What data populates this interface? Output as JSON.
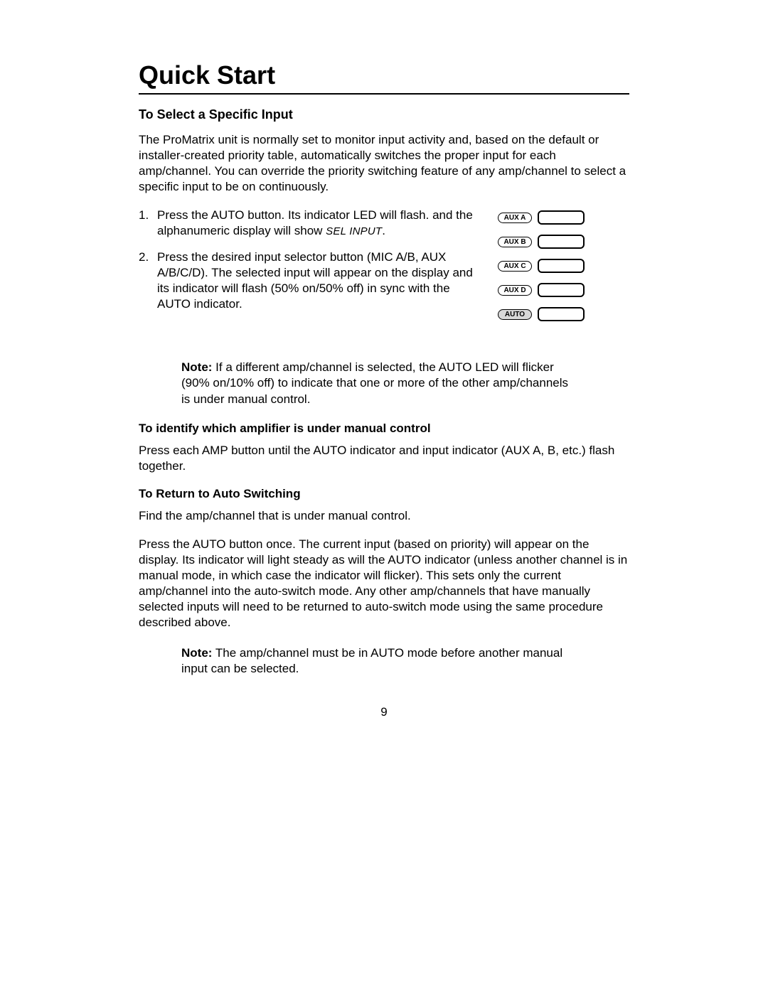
{
  "title": "Quick Start",
  "subtitle": "To Select a Specific Input",
  "intro": "The ProMatrix unit is normally set to monitor input activity and, based on the default or installer-created priority table, automatically switches the proper input for each amp/channel.  You can override the priority switching feature of any amp/channel to select a specific input to be on continuously.",
  "step1_num": "1.",
  "step1_a": "Press the AUTO button.  Its indicator LED will flash. and the alphanumeric display will show ",
  "step1_b": "SEL INPUT",
  "step1_c": ".",
  "step2_num": "2.",
  "step2": "Press the desired input selector button (MIC A/B, AUX A/B/C/D).  The selected input will appear on the display and its indicator will flash (50% on/50% off) in sync with the AUTO indicator.",
  "buttons": {
    "aux_a": "AUX A",
    "aux_b": "AUX B",
    "aux_c": "AUX C",
    "aux_d": "AUX D",
    "auto": "AUTO"
  },
  "note1_label": "Note:",
  "note1": " If a different amp/channel is selected, the AUTO LED will flicker (90% on/10% off) to indicate that one or more of the other amp/channels is under manual control.",
  "sec1_head": "To identify which amplifier is under manual control",
  "sec1_body": "Press each AMP button until the AUTO indicator and input indicator (AUX A, B, etc.) flash together.",
  "sec2_head": "To Return to Auto Switching",
  "sec2_body1": "Find the amp/channel that is under manual control.",
  "sec2_body2": "Press the AUTO button once.  The current input (based on priority) will appear on the display.  Its indicator will light steady as will the AUTO indicator (unless another channel is in manual mode, in which case the indicator will flicker).  This sets only the current amp/channel into the auto-switch mode.  Any other amp/channels that have manually selected inputs will need to be returned to auto-switch mode using the same procedure described above.",
  "note2_label": "Note:",
  "note2": " The amp/channel must be in AUTO mode before another manual input can be selected.",
  "pagenum": "9"
}
